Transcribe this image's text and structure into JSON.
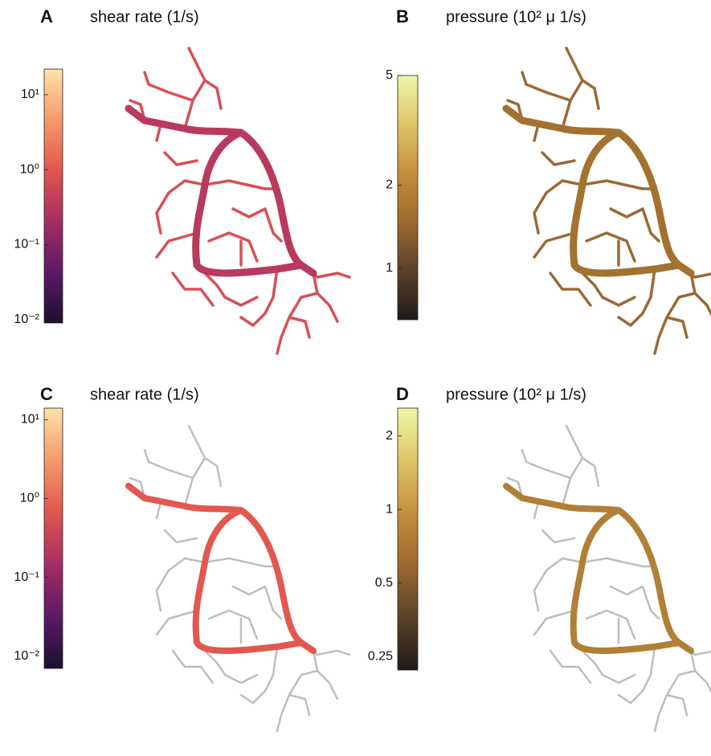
{
  "panels": [
    {
      "letter": "A",
      "title": "shear rate (1/s)",
      "colorbar": {
        "log": true,
        "lim": [
          0.009,
          22
        ],
        "ticks": [
          {
            "value": 0.01,
            "label": "10⁻²"
          },
          {
            "value": 0.1,
            "label": "10⁻¹"
          },
          {
            "value": 1,
            "label": "10⁰"
          },
          {
            "value": 10,
            "label": "10¹"
          }
        ],
        "colormap": [
          "#1d0f2e",
          "#5b1a66",
          "#a52d63",
          "#e0564f",
          "#f59a6a",
          "#fde3a8"
        ]
      }
    },
    {
      "letter": "B",
      "title": "pressure (10² μ 1/s)",
      "colorbar": {
        "log": true,
        "lim": [
          0.65,
          5
        ],
        "ticks": [
          1,
          2,
          5
        ],
        "colormap": [
          "#1f1a17",
          "#5a4129",
          "#9c6a2f",
          "#c48f3c",
          "#dfc567",
          "#eef7a8"
        ]
      }
    },
    {
      "letter": "C",
      "title": "shear rate (1/s)",
      "colorbar": {
        "log": true,
        "lim": [
          0.007,
          14
        ],
        "ticks": [
          {
            "value": 0.01,
            "label": "10⁻²"
          },
          {
            "value": 0.1,
            "label": "10⁻¹"
          },
          {
            "value": 1,
            "label": "10⁰"
          },
          {
            "value": 10,
            "label": "10¹"
          }
        ],
        "colormap": [
          "#1d0f2e",
          "#5b1a66",
          "#a52d63",
          "#e0564f",
          "#f59a6a",
          "#fde3a8"
        ]
      }
    },
    {
      "letter": "D",
      "title": "pressure (10² μ 1/s)",
      "colorbar": {
        "log": true,
        "lim": [
          0.22,
          2.6
        ],
        "ticks": [
          0.25,
          0.5,
          1,
          2
        ],
        "colormap": [
          "#1f1a17",
          "#5a4129",
          "#9c6a2f",
          "#c48f3c",
          "#dfc567",
          "#eef7a8"
        ]
      }
    }
  ]
}
